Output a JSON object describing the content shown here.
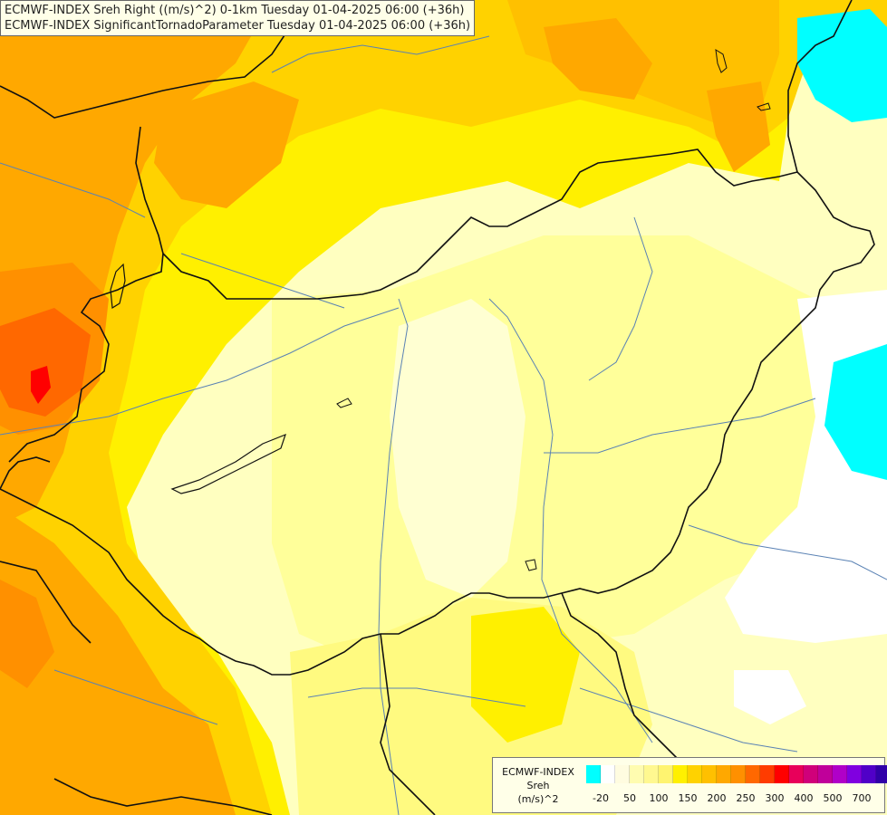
{
  "header": {
    "line1": "ECMWF-INDEX Sreh Right ((m/s)^2) 0-1km Tuesday 01-04-2025 06:00 (+36h)",
    "line2": "ECMWF-INDEX SignificantTornadoParameter Tuesday 01-04-2025 06:00 (+36h)"
  },
  "legend": {
    "title1": "ECMWF-INDEX",
    "title2": "Sreh",
    "title3": "(m/s)^2",
    "colors": [
      "#00ffff",
      "#ffffff",
      "#fffce0",
      "#fffcb0",
      "#fff890",
      "#fff470",
      "#fff000",
      "#ffd200",
      "#ffc000",
      "#ffa800",
      "#ff9000",
      "#ff6800",
      "#ff3c00",
      "#ff0000",
      "#e8005a",
      "#d0007a",
      "#c0009a",
      "#b000c8",
      "#8000e0",
      "#5000c8",
      "#3000a8",
      "#101080"
    ],
    "ticks": [
      "-20",
      "50",
      "100",
      "150",
      "200",
      "250",
      "300",
      "400",
      "500",
      "700"
    ]
  },
  "colors": {
    "country_border": "#111111",
    "river": "#5a82b4",
    "dark_orange": "#ff9000",
    "red": "#ff0000",
    "cyan": "#00ffff"
  }
}
